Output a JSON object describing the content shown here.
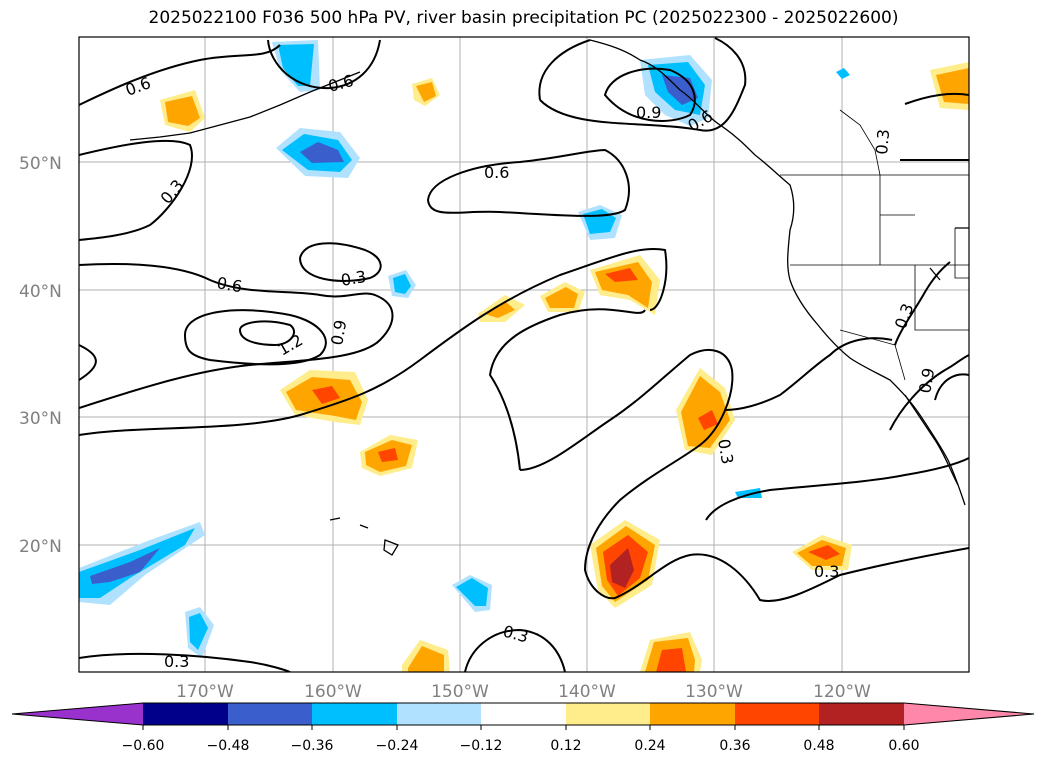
{
  "title": "2025022100 F036 500 hPa PV, river basin precipitation PC (2025022300 - 2025022600)",
  "map": {
    "lat_labels": [
      "50°N",
      "40°N",
      "30°N",
      "20°N"
    ],
    "lon_labels": [
      "170°W",
      "160°W",
      "150°W",
      "140°W",
      "130°W",
      "120°W"
    ],
    "contour_labels": [
      "0.6",
      "0.6",
      "0.3",
      "0.6",
      "0.9",
      "0.6",
      "0.3",
      "0.3",
      "0.6",
      "1.2",
      "0.9",
      "0.3",
      "0.3",
      "0.3",
      "0.3",
      "0.3",
      "0.9"
    ]
  },
  "colorbar": {
    "tick_labels": [
      "−0.60",
      "−0.48",
      "−0.36",
      "−0.24",
      "−0.12",
      "0.12",
      "0.24",
      "0.36",
      "0.48",
      "0.60"
    ],
    "colors": [
      "#9932cc",
      "#00008b",
      "#3a5fcd",
      "#00bfff",
      "#b0e2ff",
      "#ffffff",
      "#ffec8b",
      "#ffa500",
      "#ff4500",
      "#b22222",
      "#ff88aa"
    ]
  }
}
